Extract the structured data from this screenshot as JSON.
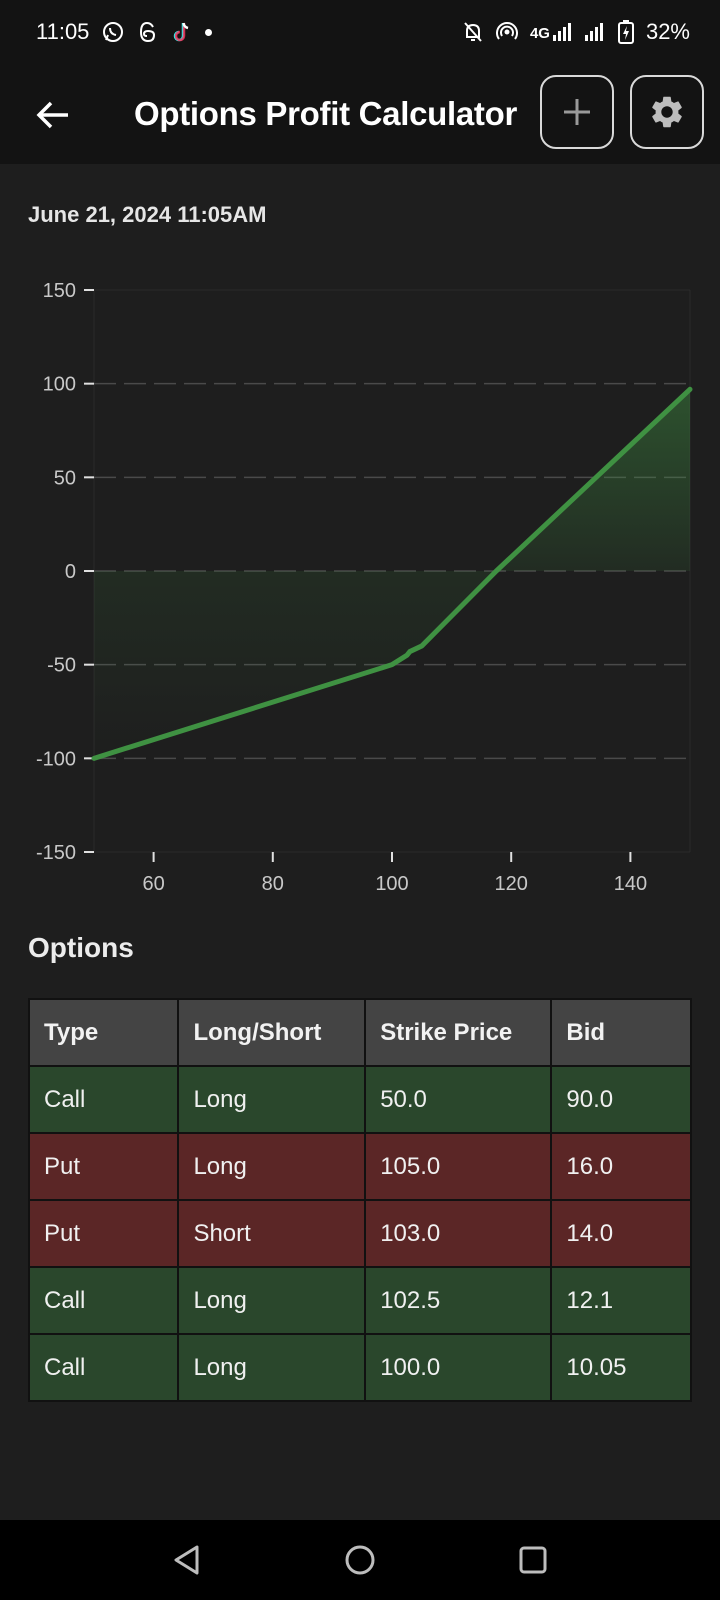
{
  "status_bar": {
    "time": "11:05",
    "network": "4G",
    "battery": "32%",
    "left_icons": [
      "whatsapp-icon",
      "threads-icon",
      "tiktok-icon",
      "notification-dot-icon"
    ],
    "right_icons": [
      "mute-bell-icon",
      "hotspot-icon",
      "signal-4g-icon",
      "signal-icon",
      "battery-charging-icon"
    ]
  },
  "app_bar": {
    "title": "Options Profit Calculator",
    "back_icon": "arrow-left-icon",
    "add_icon": "plus-icon",
    "settings_icon": "gear-icon"
  },
  "timestamp": "June 21, 2024 11:05AM",
  "colors": {
    "line": "#3f9142",
    "call_row": "#2a472c",
    "put_row": "#5b2626",
    "header_row": "#444444"
  },
  "chart_data": {
    "type": "area",
    "title": "",
    "xlabel": "",
    "ylabel": "",
    "xlim": [
      50,
      150
    ],
    "ylim": [
      -150,
      150
    ],
    "x_ticks": [
      "60",
      "80",
      "100",
      "120",
      "140"
    ],
    "y_ticks": [
      "150",
      "100",
      "50",
      "0",
      "-50",
      "-100",
      "-150"
    ],
    "grid": "horizontal dashed",
    "series": [
      {
        "x": [
          50,
          100,
          102.5,
          103,
          105,
          117.5,
          150
        ],
        "y": [
          -100,
          -50,
          -45,
          -43,
          -40,
          0,
          97
        ]
      }
    ]
  },
  "options_section": {
    "title": "Options",
    "columns": [
      "Type",
      "Long/Short",
      "Strike Price",
      "Bid"
    ],
    "rows": [
      {
        "type": "Call",
        "long_short": "Long",
        "strike": "50.0",
        "bid": "90.0"
      },
      {
        "type": "Put",
        "long_short": "Long",
        "strike": "105.0",
        "bid": "16.0"
      },
      {
        "type": "Put",
        "long_short": "Short",
        "strike": "103.0",
        "bid": "14.0"
      },
      {
        "type": "Call",
        "long_short": "Long",
        "strike": "102.5",
        "bid": "12.1"
      },
      {
        "type": "Call",
        "long_short": "Long",
        "strike": "100.0",
        "bid": "10.05"
      }
    ]
  },
  "nav_bar": {
    "icons": [
      "nav-back-icon",
      "nav-home-icon",
      "nav-recents-icon"
    ]
  }
}
